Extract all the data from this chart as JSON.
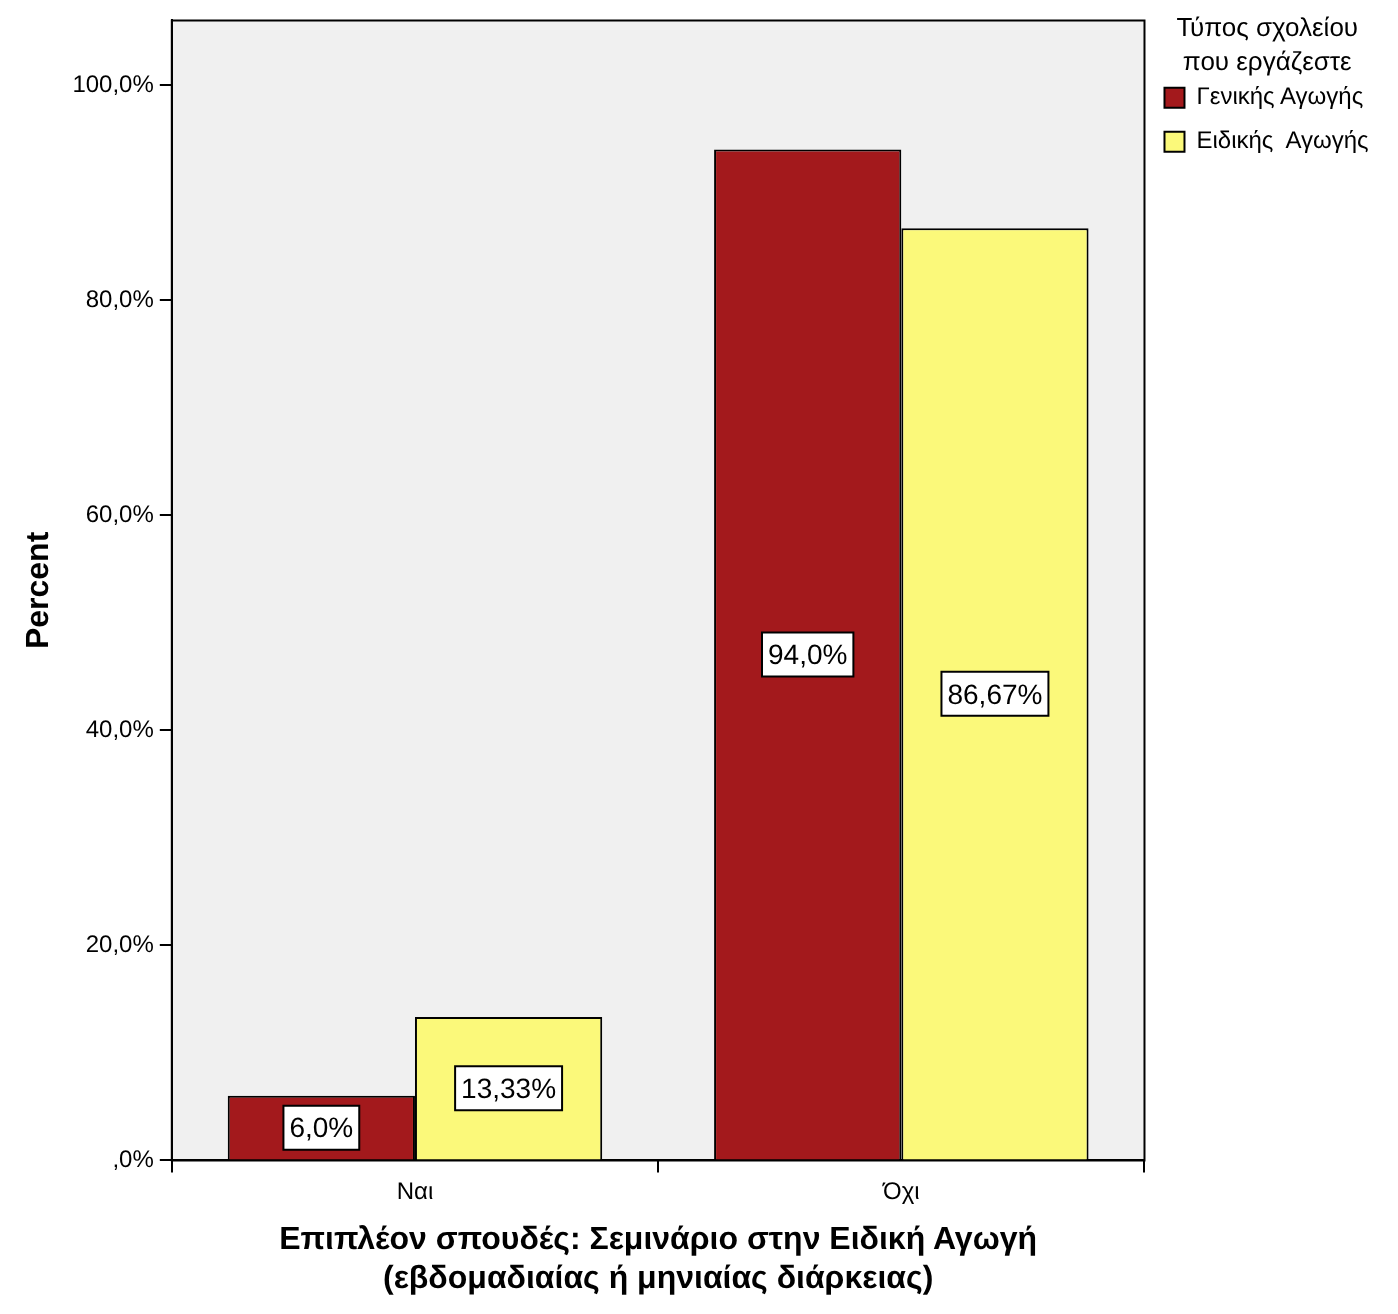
{
  "chart_data": {
    "type": "bar",
    "ylabel": "Percent",
    "xlabel": "Επιπλέον σπουδές: Σεμινάριο στην Ειδική Αγωγή\n(εβδομαδιαίας ή μηνιαίας διάρκειας)",
    "legend_title": "Τύπος σχολείου που εργάζεστε",
    "legend": "top right",
    "grid": false,
    "categories": [
      "Ναι",
      "Όχι"
    ],
    "series": [
      {
        "name": "Γενικής Αγωγής",
        "color": "#a3191c",
        "values": [
          6.0,
          94.0
        ],
        "value_labels": [
          "6,0%",
          "94,0%"
        ]
      },
      {
        "name": "Ειδικής  Αγωγής",
        "color": "#fbf97a",
        "values": [
          13.33,
          86.67
        ],
        "value_labels": [
          "13,33%",
          "86,67%"
        ]
      }
    ],
    "ylim": [
      0,
      106
    ],
    "yticks": [
      {
        "value": 0,
        "label": ",0%"
      },
      {
        "value": 20,
        "label": "20,0%"
      },
      {
        "value": 40,
        "label": "40,0%"
      },
      {
        "value": 60,
        "label": "60,0%"
      },
      {
        "value": 80,
        "label": "80,0%"
      },
      {
        "value": 100,
        "label": "100,0%"
      }
    ]
  }
}
